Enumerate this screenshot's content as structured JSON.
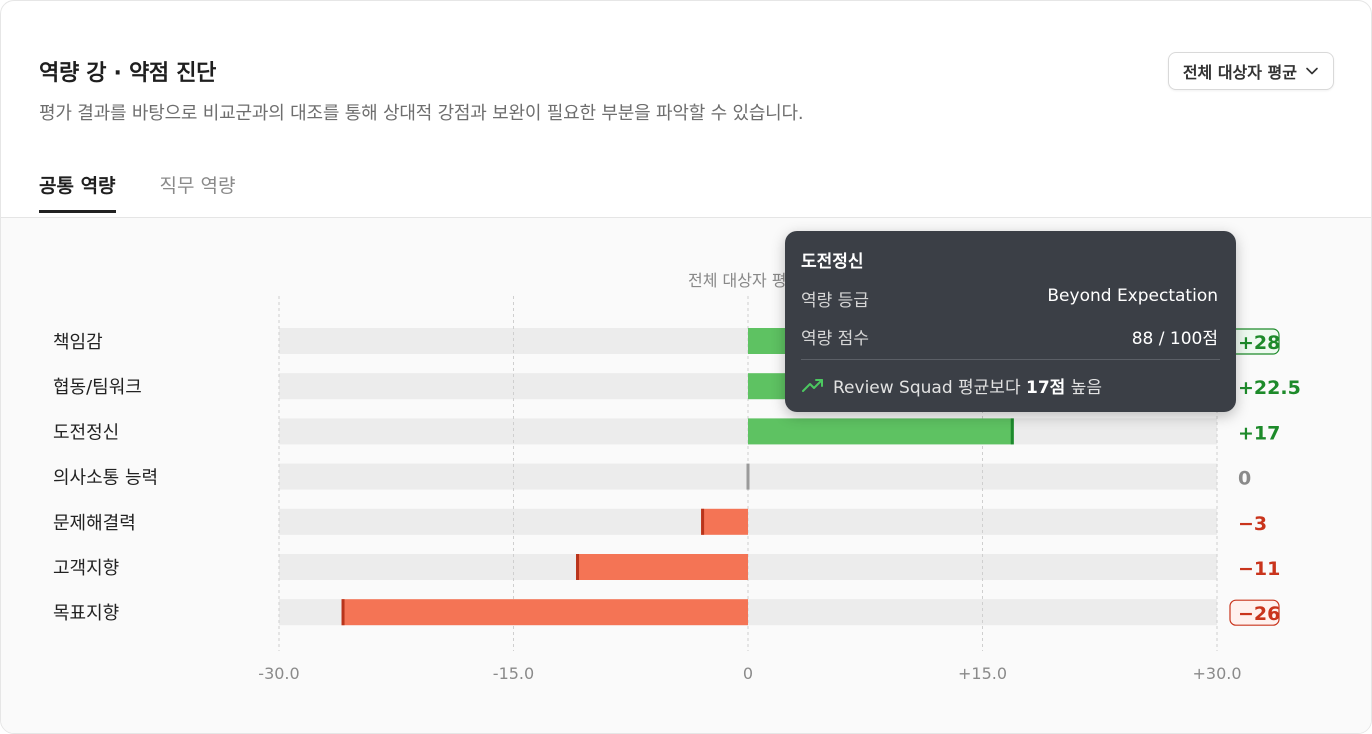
{
  "header": {
    "title": "역량 강 · 약점 진단",
    "subtitle": "평가 결과를 바탕으로 비교군과의 대조를 통해 상대적 강점과 보완이 필요한 부분을 파악할 수 있습니다.",
    "dropdown_label": "전체 대상자 평균"
  },
  "tabs": [
    {
      "label": "공통 역량",
      "active": true
    },
    {
      "label": "직무 역량",
      "active": false
    }
  ],
  "chart_data": {
    "type": "bar",
    "orientation": "horizontal",
    "title": "전체 대상자 평",
    "categories": [
      "책임감",
      "협동/팀워크",
      "도전정신",
      "의사소통 능력",
      "문제해결력",
      "고객지향",
      "목표지향"
    ],
    "values": [
      28,
      22.5,
      17,
      0,
      -3,
      -11,
      -26
    ],
    "value_labels": [
      "+28",
      "+22.5",
      "+17",
      "0",
      "−3",
      "−11",
      "−26"
    ],
    "xlim": [
      -30,
      30
    ],
    "xticks": [
      -30,
      -15,
      0,
      15,
      30
    ],
    "xtick_labels": [
      "-30.0",
      "-15.0",
      "0",
      "+15.0",
      "+30.0"
    ],
    "grid": true,
    "colors": {
      "positive": "#5ec262",
      "positive_edge": "#1e8a2e",
      "negative": "#f47455",
      "negative_edge": "#b8341b",
      "zero": "#9a9a9a",
      "track": "#ececec",
      "pos_text": "#1d8a2a",
      "neg_text": "#c9341c",
      "zero_text": "#8a8a8a"
    },
    "boxed_labels": [
      0,
      6
    ]
  },
  "tooltip": {
    "title": "도전정신",
    "grade_label": "역량 등급",
    "grade_value": "Beyond Expectation",
    "score_label": "역량 점수",
    "score_value": "88 / 100점",
    "footer_prefix": "Review Squad 평균보다 ",
    "footer_bold": "17점",
    "footer_suffix": " 높음",
    "trend_icon": "trending-up-icon",
    "trend_color": "#4cc860"
  }
}
